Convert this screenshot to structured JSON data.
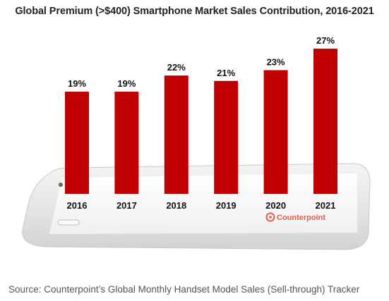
{
  "chart_data": {
    "type": "bar",
    "title": "Global Premium (>$400) Smartphone Market Sales Contribution, 2016-2021",
    "categories": [
      "2016",
      "2017",
      "2018",
      "2019",
      "2020",
      "2021"
    ],
    "values": [
      19,
      19,
      22,
      21,
      23,
      27
    ],
    "value_labels": [
      "19%",
      "19%",
      "22%",
      "21%",
      "23%",
      "27%"
    ],
    "unit": "%",
    "ylim": [
      0,
      27
    ],
    "grid": false,
    "bar_color": "#c00000",
    "xlabel": "",
    "ylabel": ""
  },
  "logo": {
    "name": "counterpoint-logo",
    "text": "Counterpoint"
  },
  "source": "Source: Counterpoint’s Global Monthly Handset Model Sales (Sell-through) Tracker"
}
